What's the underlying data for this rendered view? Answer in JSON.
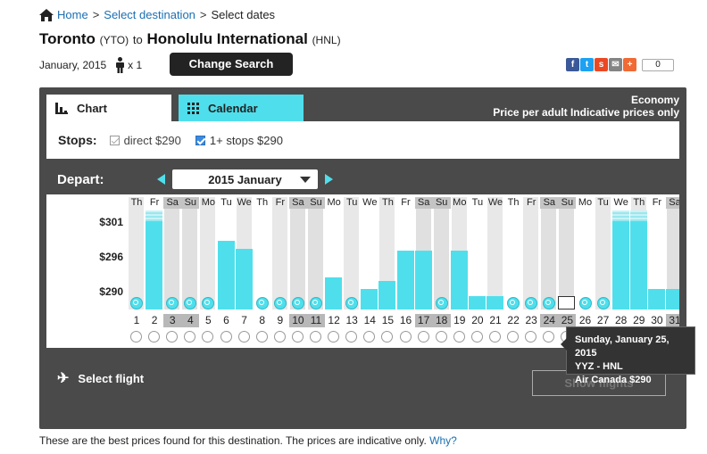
{
  "breadcrumb": {
    "home": "Home",
    "select_destination": "Select destination",
    "current": "Select dates",
    "separator": ">"
  },
  "route": {
    "origin": "Toronto",
    "origin_code": "(YTO)",
    "to": "to",
    "destination": "Honolulu International",
    "destination_code": "(HNL)"
  },
  "trip": {
    "month": "January, 2015",
    "passengers": "x 1"
  },
  "buttons": {
    "change_search": "Change Search",
    "show_flights": "Show flights",
    "select_flight": "Select flight"
  },
  "share": {
    "count": "0",
    "facebook": "f",
    "twitter": "t",
    "stumble": "s",
    "email": "✉",
    "plus": "+"
  },
  "tabs": {
    "chart": "Chart",
    "calendar": "Calendar"
  },
  "cabin": {
    "class": "Economy",
    "note": "Price per adult Indicative prices only"
  },
  "stops": {
    "label": "Stops:",
    "direct": "direct $290",
    "one_plus": "1+ stops $290"
  },
  "depart": {
    "label": "Depart:",
    "month": "2015 January"
  },
  "colors": {
    "accent": "#4fdfec",
    "panel": "#4a4a4a",
    "link": "#1a6fb3"
  },
  "chart": {
    "y_labels": [
      "$301",
      "$296",
      "$290"
    ],
    "weekdays": [
      "Th",
      "Fr",
      "Sa",
      "Su",
      "Mo",
      "Tu",
      "We",
      "Th",
      "Fr",
      "Sa",
      "Su",
      "Mo",
      "Tu",
      "We",
      "Th",
      "Fr",
      "Sa",
      "Su",
      "Mo",
      "Tu",
      "We",
      "Th",
      "Fr",
      "Sa",
      "Su",
      "Mo",
      "Tu",
      "We",
      "Th",
      "Fr",
      "Sa"
    ],
    "days": [
      "1",
      "2",
      "3",
      "4",
      "5",
      "6",
      "7",
      "8",
      "9",
      "10",
      "11",
      "12",
      "13",
      "14",
      "15",
      "16",
      "17",
      "18",
      "19",
      "20",
      "21",
      "22",
      "23",
      "24",
      "25",
      "26",
      "27",
      "28",
      "29",
      "30",
      "31"
    ],
    "selected_day": "25"
  },
  "chart_data": {
    "type": "bar",
    "title": "",
    "xlabel": "",
    "ylabel": "",
    "categories": [
      "1",
      "2",
      "3",
      "4",
      "5",
      "6",
      "7",
      "8",
      "9",
      "10",
      "11",
      "12",
      "13",
      "14",
      "15",
      "16",
      "17",
      "18",
      "19",
      "20",
      "21",
      "22",
      "23",
      "24",
      "25",
      "26",
      "27",
      "28",
      "29",
      "30",
      "31"
    ],
    "values": [
      null,
      301.5,
      null,
      null,
      null,
      297.5,
      296.5,
      null,
      null,
      null,
      null,
      292.7,
      null,
      291.2,
      292.2,
      296.3,
      296.3,
      null,
      296.3,
      290.3,
      290.3,
      null,
      null,
      null,
      290.3,
      null,
      null,
      301.5,
      301.5,
      291.2,
      291.2
    ],
    "ylim": [
      288.5,
      302
    ],
    "y_ticks": [
      290,
      296,
      301
    ]
  },
  "tooltip": {
    "date": "Sunday, January 25, 2015",
    "route": "YYZ - HNL",
    "airline_price": "Air Canada $290"
  },
  "footer": {
    "text": "These are the best prices found for this destination. The prices are indicative only.",
    "link": "Why?"
  }
}
